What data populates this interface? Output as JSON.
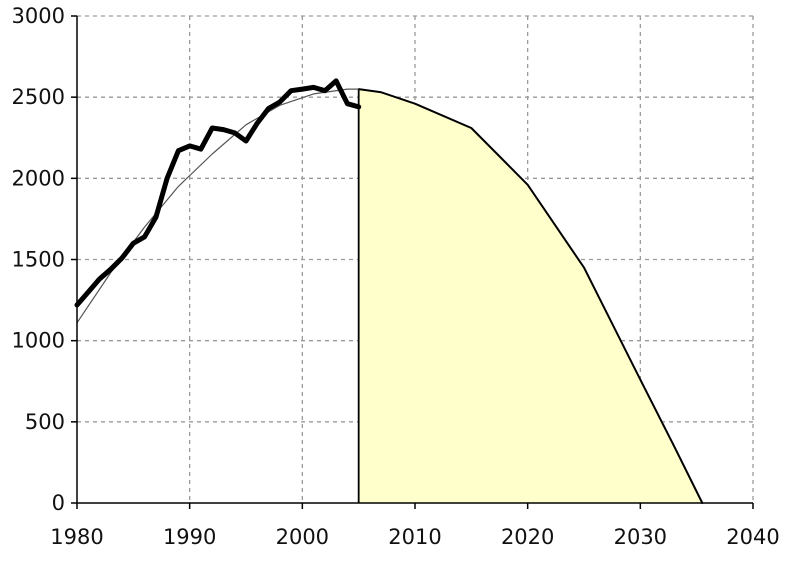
{
  "chart_data": {
    "type": "line",
    "title": "",
    "xlabel": "",
    "ylabel": "",
    "xlim": [
      1980,
      2040
    ],
    "ylim": [
      0,
      3000
    ],
    "x_ticks": [
      "1980",
      "1990",
      "2000",
      "2010",
      "2020",
      "2030",
      "2040"
    ],
    "y_ticks": [
      "0",
      "500",
      "1000",
      "1500",
      "2000",
      "2500",
      "3000"
    ],
    "grid": true,
    "legend": "none",
    "series": [
      {
        "kind": "observed",
        "color": "#000000",
        "x": [
          1980,
          1981,
          1982,
          1983,
          1984,
          1985,
          1986,
          1987,
          1988,
          1989,
          1990,
          1991,
          1992,
          1993,
          1994,
          1995,
          1996,
          1997,
          1998,
          1999,
          2000,
          2001,
          2002,
          2003,
          2004,
          2005
        ],
        "y": [
          1220,
          1300,
          1380,
          1440,
          1510,
          1600,
          1640,
          1760,
          2000,
          2170,
          2200,
          2180,
          2310,
          2300,
          2280,
          2230,
          2340,
          2430,
          2470,
          2540,
          2550,
          2560,
          2540,
          2600,
          2460,
          2440
        ]
      },
      {
        "kind": "fitted-curve",
        "color": "#555555",
        "x": [
          1980,
          1983,
          1986,
          1989,
          1992,
          1995,
          1998,
          2001,
          2004,
          2005
        ],
        "y": [
          1110,
          1420,
          1700,
          1950,
          2150,
          2330,
          2450,
          2520,
          2550,
          2550
        ]
      },
      {
        "kind": "projection",
        "color": "#000000",
        "fill": "#ffffcc",
        "x": [
          2005,
          2007,
          2010,
          2015,
          2020,
          2025,
          2030,
          2033,
          2035.5
        ],
        "y": [
          2550,
          2530,
          2460,
          2310,
          1960,
          1450,
          760,
          350,
          0
        ]
      }
    ]
  }
}
